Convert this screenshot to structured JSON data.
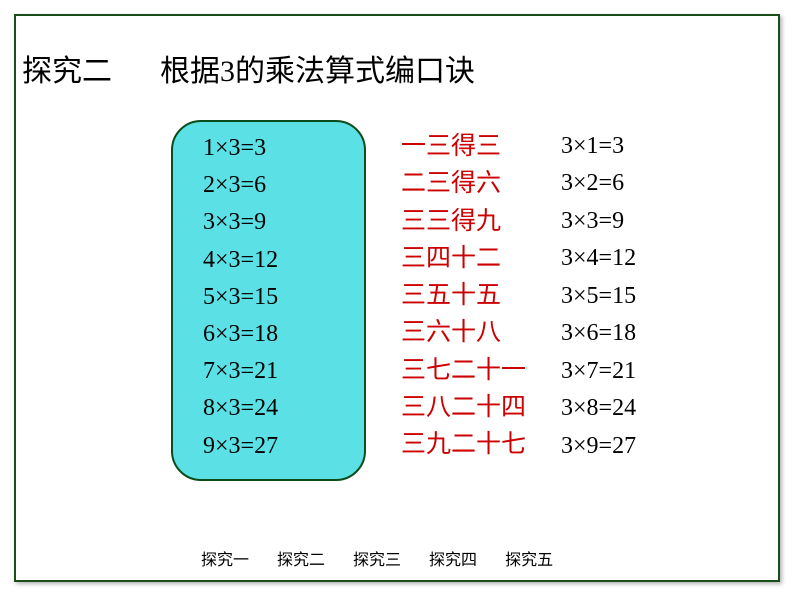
{
  "title": {
    "left": "探究二",
    "right": "根据3的乘法算式编口诀"
  },
  "columns": {
    "left": [
      "1×3=3",
      "2×3=6",
      "3×3=9",
      "4×3=12",
      "5×3=15",
      "6×3=18",
      "7×3=21",
      "8×3=24",
      "9×3=27"
    ],
    "middle": [
      "一三得三",
      "二三得六",
      "三三得九",
      "三四十二",
      "三五十五",
      "三六十八",
      "三七二十一",
      "三八二十四",
      "三九二十七"
    ],
    "right": [
      "3×1=3",
      "3×2=6",
      "3×3=9",
      "3×4=12",
      "3×5=15",
      "3×6=18",
      "3×7=21",
      "3×8=24",
      "3×9=27"
    ]
  },
  "nav": {
    "items": [
      "探究一",
      "探究二",
      "探究三",
      "探究四",
      "探究五"
    ]
  },
  "style": {
    "box_bg": "#5ae0e5",
    "box_border": "#0a4d1a",
    "text_color": "#000000",
    "mid_color": "#cc0000",
    "frame_border": "#1a4d1a"
  }
}
